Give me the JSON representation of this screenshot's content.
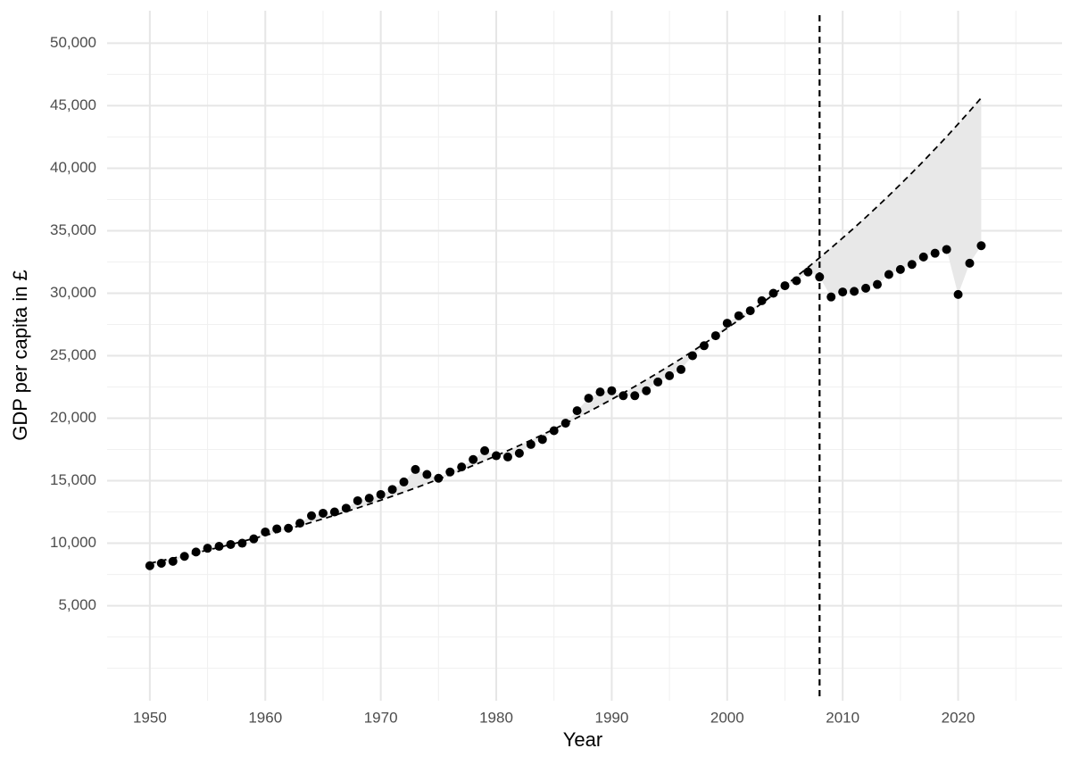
{
  "chart_data": {
    "type": "scatter",
    "x_label": "Year",
    "y_label": "GDP per capita in £",
    "x": [
      1950,
      1951,
      1952,
      1953,
      1954,
      1955,
      1956,
      1957,
      1958,
      1959,
      1960,
      1961,
      1962,
      1963,
      1964,
      1965,
      1966,
      1967,
      1968,
      1969,
      1970,
      1971,
      1972,
      1973,
      1974,
      1975,
      1976,
      1977,
      1978,
      1979,
      1980,
      1981,
      1982,
      1983,
      1984,
      1985,
      1986,
      1987,
      1988,
      1989,
      1990,
      1991,
      1992,
      1993,
      1994,
      1995,
      1996,
      1997,
      1998,
      1999,
      2000,
      2001,
      2002,
      2003,
      2004,
      2005,
      2006,
      2007,
      2008,
      2009,
      2010,
      2011,
      2012,
      2013,
      2014,
      2015,
      2016,
      2017,
      2018,
      2019,
      2020,
      2021,
      2022
    ],
    "series": [
      {
        "mark": "point",
        "color": "#000000",
        "values": [
          8200,
          8400,
          8550,
          8950,
          9300,
          9600,
          9750,
          9900,
          10000,
          10350,
          10900,
          11150,
          11200,
          11600,
          12200,
          12400,
          12500,
          12800,
          13400,
          13600,
          13900,
          14300,
          14900,
          15900,
          15500,
          15200,
          15700,
          16100,
          16700,
          17400,
          17000,
          16900,
          17200,
          17900,
          18300,
          19000,
          19600,
          20600,
          21600,
          22100,
          22200,
          21800,
          21800,
          22200,
          22900,
          23400,
          23900,
          25000,
          25800,
          26600,
          27600,
          28200,
          28600,
          29400,
          30000,
          30600,
          31000,
          31700,
          31300,
          29700,
          30100,
          30150,
          30400,
          30700,
          31500,
          31900,
          32300,
          32900,
          33200,
          33500,
          29900,
          32400,
          33800
        ]
      },
      {
        "mark": "dashed-line",
        "color": "#000000",
        "values": [
          8400,
          8600,
          8800,
          9010,
          9230,
          9450,
          9670,
          9900,
          10140,
          10380,
          10630,
          10880,
          11140,
          11400,
          11670,
          11950,
          12230,
          12530,
          12820,
          13130,
          13440,
          13760,
          14090,
          14420,
          14770,
          15120,
          15480,
          15840,
          16220,
          16610,
          17000,
          17410,
          17820,
          18240,
          18680,
          19120,
          19580,
          20040,
          20520,
          21010,
          21510,
          22020,
          22540,
          23080,
          23630,
          24190,
          24760,
          25350,
          25960,
          26570,
          27210,
          27850,
          28520,
          29190,
          29890,
          30600,
          31330,
          32070,
          32840,
          33620,
          34420,
          35230,
          36070,
          36930,
          37810,
          38710,
          39630,
          40570,
          41540,
          42520,
          43540,
          44570,
          45630
        ]
      }
    ],
    "gap_fill": "#e8e8e8",
    "reference_line_x": 2008,
    "xlim": [
      1946.3,
      2029
    ],
    "ylim": [
      -2600,
      52600
    ],
    "xticks": [
      1950,
      1960,
      1970,
      1980,
      1990,
      2000,
      2010,
      2020
    ],
    "x_minor_ticks": [
      1955,
      1965,
      1975,
      1985,
      1995,
      2005,
      2015,
      2025
    ],
    "yticks": [
      {
        "value": 5000,
        "label": "5,000"
      },
      {
        "value": 10000,
        "label": "10,000"
      },
      {
        "value": 15000,
        "label": "15,000"
      },
      {
        "value": 20000,
        "label": "20,000"
      },
      {
        "value": 25000,
        "label": "25,000"
      },
      {
        "value": 30000,
        "label": "30,000"
      },
      {
        "value": 35000,
        "label": "35,000"
      },
      {
        "value": 40000,
        "label": "40,000"
      },
      {
        "value": 45000,
        "label": "45,000"
      },
      {
        "value": 50000,
        "label": "50,000"
      }
    ],
    "y_minor_ticks": [
      0,
      2500,
      7500,
      12500,
      17500,
      22500,
      27500,
      32500,
      37500,
      42500,
      47500
    ],
    "grid": true
  }
}
